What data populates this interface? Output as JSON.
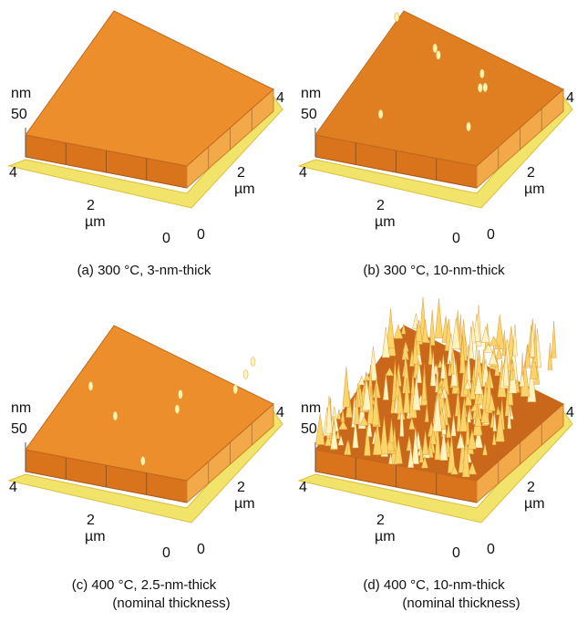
{
  "panels": [
    {
      "caption": [
        "(a) 300 °C, 3-nm-thick"
      ],
      "z_unit": "nm",
      "z_tick": "50",
      "x_ticks": [
        "4",
        "2",
        "0"
      ],
      "x_unit": "µm",
      "y_ticks": [
        "2",
        "4"
      ],
      "y_unit": "µm"
    },
    {
      "caption": [
        "(b) 300 °C, 10-nm-thick"
      ],
      "z_unit": "nm",
      "z_tick": "50",
      "x_ticks": [
        "4",
        "2",
        "0"
      ],
      "x_unit": "µm",
      "y_ticks": [
        "2",
        "4"
      ],
      "y_unit": "µm"
    },
    {
      "caption": [
        "(c) 400 °C, 2.5-nm-thick",
        "(nominal thickness)"
      ],
      "z_unit": "nm",
      "z_tick": "50",
      "x_ticks": [
        "4",
        "2",
        "0"
      ],
      "x_unit": "µm",
      "y_ticks": [
        "2",
        "4"
      ],
      "y_unit": "µm"
    },
    {
      "caption": [
        "(d) 400 °C, 10-nm-thick",
        "(nominal thickness)"
      ],
      "z_unit": "nm",
      "z_tick": "50",
      "x_ticks": [
        "4",
        "2",
        "0"
      ],
      "x_unit": "µm",
      "y_ticks": [
        "2",
        "4"
      ],
      "y_unit": "µm"
    }
  ]
}
